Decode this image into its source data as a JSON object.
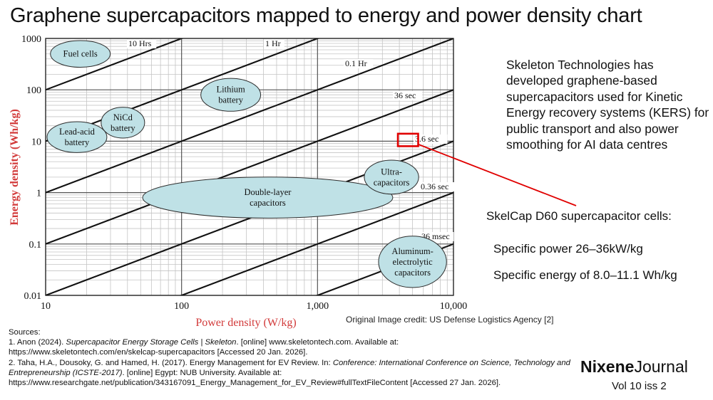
{
  "page": {
    "title": "Graphene supercapacitors mapped to energy and power density chart",
    "description": "Skeleton Technologies has developed graphene-based supercapacitors used for Kinetic Energy recovery systems (KERS) for public transport and also power smoothing for AI data centres",
    "specs_heading": "SkelCap D60 supercapacitor cells:",
    "spec_power": "Specific power 26–36kW/kg",
    "spec_energy": "Specific energy of 8.0–11.1 Wh/kg",
    "image_credit": "Original Image credit: US Defense Logistics Agency [2]",
    "brand_bold": "Nixene",
    "brand_light": "Journal",
    "issue": "Vol 10  iss 2",
    "accent_color": "#e00000"
  },
  "sources": {
    "heading": "Sources:",
    "s1_a": "1. Anon (2024). ",
    "s1_b": "Supercapacitor Energy Storage Cells | Skeleton",
    "s1_c": ". [online] www.skeletontech.com. Available at:",
    "s1_d": "https://www.skeletontech.com/en/skelcap-supercapacitors [Accessed 20 Jan. 2026].",
    "s2_a": "2. Taha, H.A., Dousoky, G. and Hamed, H. (2017). Energy Management for EV Review. In: ",
    "s2_b": "Conference: International Conference on Science, Technology and Entrepreneurship (ICSTE-2017)",
    "s2_c": ". [online] Egypt: NUB University. Available at:",
    "s2_d": "https://www.researchgate.net/publication/343167091_Energy_Management_for_EV_Review#fullTextFileContent [Accessed 27 Jan. 2026]."
  },
  "chart_data": {
    "type": "scatter",
    "xlabel": "Power density (W/kg)",
    "ylabel": "Energy density (Wh/kg)",
    "xscale": "log",
    "yscale": "log",
    "xlim": [
      10,
      10000
    ],
    "ylim": [
      0.01,
      1000
    ],
    "grid": true,
    "label_color": "#d23a3a",
    "x_ticks": [
      "10",
      "100",
      "1,000",
      "10,000"
    ],
    "y_ticks": [
      "0.01",
      "0.1",
      "1",
      "10",
      "100",
      "1000"
    ],
    "time_lines": [
      {
        "label": "10 Hrs",
        "hours": 10
      },
      {
        "label": "1 Hr",
        "hours": 1
      },
      {
        "label": "0.1 Hr",
        "hours": 0.1
      },
      {
        "label": "36 sec",
        "hours": 0.01
      },
      {
        "label": "3.6 sec",
        "hours": 0.001
      },
      {
        "label": "0.36 sec",
        "hours": 0.0001
      },
      {
        "label": "36 msec",
        "hours": 1e-05
      }
    ],
    "regions": [
      {
        "label": [
          "Fuel cells"
        ],
        "cx": 18,
        "cy": 500,
        "rx_decades": 0.22,
        "ry_decades": 0.26,
        "fill": "#bfe1e6"
      },
      {
        "label": [
          "Lithium",
          "battery"
        ],
        "cx": 230,
        "cy": 80,
        "rx_decades": 0.22,
        "ry_decades": 0.32,
        "fill": "#bfe1e6"
      },
      {
        "label": [
          "NiCd",
          "battery"
        ],
        "cx": 37,
        "cy": 23,
        "rx_decades": 0.16,
        "ry_decades": 0.3,
        "fill": "#bfe1e6"
      },
      {
        "label": [
          "Lead-acid",
          "battery"
        ],
        "cx": 17,
        "cy": 12,
        "rx_decades": 0.22,
        "ry_decades": 0.3,
        "fill": "#bfe1e6"
      },
      {
        "label": [
          "Double-layer",
          "capacitors"
        ],
        "cx": 430,
        "cy": 0.8,
        "rx_decades": 0.92,
        "ry_decades": 0.4,
        "fill": "#bfe1e6"
      },
      {
        "label": [
          "Ultra-",
          "capacitors"
        ],
        "cx": 3500,
        "cy": 2,
        "rx_decades": 0.2,
        "ry_decades": 0.33,
        "fill": "#bfe1e6"
      },
      {
        "label": [
          "Aluminum-",
          "electrolytic",
          "capacitors"
        ],
        "cx": 5000,
        "cy": 0.045,
        "rx_decades": 0.25,
        "ry_decades": 0.5,
        "fill": "#bfe1e6"
      }
    ],
    "highlight": {
      "x_range": [
        3900,
        5500
      ],
      "y_range": [
        8.0,
        14.0
      ],
      "color": "#e00000"
    }
  }
}
